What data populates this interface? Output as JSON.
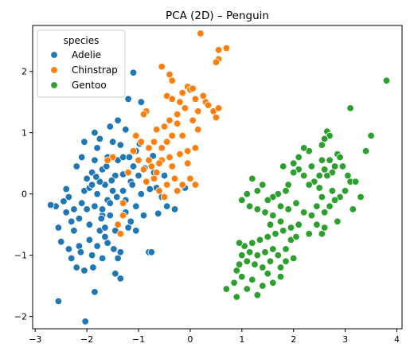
{
  "chart_data": {
    "type": "scatter",
    "title": "PCA (2D) – Penguin",
    "xlabel": "",
    "ylabel": "",
    "xlim": [
      -3.05,
      4.1
    ],
    "ylim": [
      -2.2,
      2.75
    ],
    "xticks": [
      -3,
      -2,
      -1,
      0,
      1,
      2,
      3,
      4
    ],
    "yticks": [
      -2,
      -1,
      0,
      1,
      2
    ],
    "grid": false,
    "legend": {
      "title": "species",
      "position": "top-left"
    },
    "series": [
      {
        "name": "Adelie",
        "color": "#1f77b4",
        "points": [
          [
            -2.55,
            -1.75
          ],
          [
            -2.03,
            -2.08
          ],
          [
            -1.85,
            -1.6
          ],
          [
            -1.45,
            -1.3
          ],
          [
            -1.35,
            -1.38
          ],
          [
            -2.6,
            -0.2
          ],
          [
            -2.7,
            -0.18
          ],
          [
            -2.55,
            -0.55
          ],
          [
            -2.4,
            -0.3
          ],
          [
            -2.35,
            -0.05
          ],
          [
            -2.4,
            0.08
          ],
          [
            -2.5,
            -0.78
          ],
          [
            -2.3,
            -1.05
          ],
          [
            -2.2,
            -1.2
          ],
          [
            -2.15,
            -0.85
          ],
          [
            -2.25,
            -0.6
          ],
          [
            -2.15,
            -0.4
          ],
          [
            -2.1,
            -0.15
          ],
          [
            -2.05,
            0.05
          ],
          [
            -2.0,
            0.25
          ],
          [
            -1.9,
            0.35
          ],
          [
            -1.85,
            0.55
          ],
          [
            -1.8,
            0.75
          ],
          [
            -1.75,
            0.9
          ],
          [
            -1.7,
            0.4
          ],
          [
            -1.65,
            0.15
          ],
          [
            -1.6,
            -0.1
          ],
          [
            -1.7,
            -0.35
          ],
          [
            -1.75,
            -0.6
          ],
          [
            -1.8,
            -0.85
          ],
          [
            -1.9,
            -1.0
          ],
          [
            -1.95,
            -0.5
          ],
          [
            -2.0,
            -0.25
          ],
          [
            -1.95,
            0.1
          ],
          [
            -1.85,
            -0.2
          ],
          [
            -1.8,
            0.0
          ],
          [
            -1.75,
            0.2
          ],
          [
            -1.7,
            -0.25
          ],
          [
            -1.65,
            -0.55
          ],
          [
            -1.6,
            -0.8
          ],
          [
            -1.55,
            -0.35
          ],
          [
            -1.5,
            0.05
          ],
          [
            -1.45,
            0.3
          ],
          [
            -1.4,
            0.55
          ],
          [
            -1.35,
            0.8
          ],
          [
            -1.3,
            0.05
          ],
          [
            -1.25,
            -0.3
          ],
          [
            -1.2,
            -0.55
          ],
          [
            -1.15,
            0.2
          ],
          [
            -1.1,
            0.45
          ],
          [
            -1.05,
            0.7
          ],
          [
            -1.0,
            0.3
          ],
          [
            -0.95,
            0.0
          ],
          [
            -1.05,
            -0.2
          ],
          [
            -1.15,
            -0.45
          ],
          [
            -0.8,
            -0.95
          ],
          [
            -0.75,
            -0.95
          ],
          [
            -0.7,
            0.35
          ],
          [
            -0.65,
            0.1
          ],
          [
            -0.6,
            0.5
          ],
          [
            -0.55,
            -0.05
          ],
          [
            -0.45,
            -0.2
          ],
          [
            -0.3,
            -0.25
          ],
          [
            -0.1,
            0.1
          ],
          [
            -0.5,
            0.3
          ],
          [
            -1.1,
            1.98
          ],
          [
            -0.95,
            1.5
          ],
          [
            -1.2,
            1.55
          ],
          [
            -1.4,
            1.2
          ],
          [
            -1.25,
            1.05
          ],
          [
            -1.3,
            0.6
          ],
          [
            -1.85,
            1.0
          ],
          [
            -2.05,
            0.85
          ],
          [
            -2.1,
            0.6
          ],
          [
            -2.2,
            0.45
          ],
          [
            -1.6,
            0.6
          ],
          [
            -1.5,
            0.85
          ],
          [
            -1.55,
            1.1
          ],
          [
            -1.35,
            -0.95
          ],
          [
            -1.25,
            -0.1
          ],
          [
            -2.25,
            -0.25
          ],
          [
            -1.95,
            -0.75
          ],
          [
            -2.05,
            -1.25
          ],
          [
            -1.7,
            -1.05
          ],
          [
            -1.45,
            -0.6
          ],
          [
            -2.3,
            -0.45
          ],
          [
            -2.45,
            -0.12
          ],
          [
            -1.62,
            0.45
          ],
          [
            -1.55,
            -0.15
          ],
          [
            -1.9,
            0.15
          ],
          [
            -1.72,
            -0.4
          ],
          [
            -1.82,
            0.28
          ],
          [
            -1.52,
            0.22
          ],
          [
            -1.42,
            -0.05
          ],
          [
            -1.3,
            0.32
          ],
          [
            -1.12,
            0.15
          ],
          [
            -0.88,
            0.42
          ],
          [
            -0.72,
            0.62
          ],
          [
            -0.62,
            -0.32
          ],
          [
            -0.9,
            -0.35
          ],
          [
            -1.05,
            -0.6
          ],
          [
            -1.18,
            0.6
          ],
          [
            -2.12,
            -0.95
          ],
          [
            -1.88,
            -1.2
          ],
          [
            -2.35,
            -0.9
          ],
          [
            -1.65,
            -0.7
          ],
          [
            -1.48,
            -0.9
          ],
          [
            -1.4,
            -1.05
          ],
          [
            -0.78,
            0.08
          ],
          [
            -0.98,
            0.82
          ]
        ]
      },
      {
        "name": "Chinstrap",
        "color": "#ff7f0e",
        "points": [
          [
            0.2,
            2.62
          ],
          [
            0.55,
            2.35
          ],
          [
            0.7,
            2.38
          ],
          [
            0.55,
            2.2
          ],
          [
            0.5,
            2.15
          ],
          [
            -0.55,
            2.08
          ],
          [
            -0.4,
            1.95
          ],
          [
            -0.35,
            1.85
          ],
          [
            -0.05,
            1.75
          ],
          [
            0.0,
            1.7
          ],
          [
            0.05,
            1.72
          ],
          [
            -0.15,
            1.65
          ],
          [
            -0.45,
            1.6
          ],
          [
            -0.35,
            1.55
          ],
          [
            -0.2,
            1.5
          ],
          [
            0.1,
            1.55
          ],
          [
            0.3,
            1.5
          ],
          [
            0.25,
            1.6
          ],
          [
            0.35,
            1.45
          ],
          [
            0.45,
            1.35
          ],
          [
            0.5,
            1.25
          ],
          [
            0.55,
            1.4
          ],
          [
            0.15,
            1.35
          ],
          [
            -0.1,
            1.4
          ],
          [
            -0.25,
            1.3
          ],
          [
            -0.4,
            1.2
          ],
          [
            -0.5,
            1.1
          ],
          [
            -0.65,
            1.05
          ],
          [
            -0.85,
            1.35
          ],
          [
            -0.9,
            1.3
          ],
          [
            -0.7,
            0.85
          ],
          [
            -0.55,
            0.75
          ],
          [
            -0.45,
            0.85
          ],
          [
            -0.25,
            1.15
          ],
          [
            -0.35,
            0.95
          ],
          [
            -0.8,
            0.55
          ],
          [
            -0.75,
            0.45
          ],
          [
            -0.9,
            0.4
          ],
          [
            -1.0,
            0.55
          ],
          [
            -1.2,
            0.35
          ],
          [
            -0.85,
            0.2
          ],
          [
            -0.7,
            0.25
          ],
          [
            -0.6,
            0.05
          ],
          [
            -0.5,
            -0.05
          ],
          [
            -0.45,
            0.15
          ],
          [
            -0.35,
            0.45
          ],
          [
            -0.2,
            0.65
          ],
          [
            -0.05,
            0.5
          ],
          [
            -0.05,
            0.7
          ],
          [
            0.1,
            0.75
          ],
          [
            -0.55,
            0.55
          ],
          [
            -0.65,
            0.35
          ],
          [
            -1.3,
            -0.15
          ],
          [
            -1.3,
            -0.35
          ],
          [
            -1.4,
            -0.5
          ],
          [
            -1.35,
            -0.65
          ],
          [
            -1.5,
            0.6
          ],
          [
            -1.6,
            0.55
          ],
          [
            -1.05,
            0.95
          ],
          [
            -1.1,
            0.7
          ],
          [
            -0.3,
            0.25
          ],
          [
            -0.25,
            0.05
          ],
          [
            -0.15,
            0.15
          ],
          [
            0.0,
            0.25
          ],
          [
            0.1,
            0.15
          ],
          [
            -0.6,
            0.5
          ],
          [
            -0.4,
            0.6
          ],
          [
            -0.8,
            0.75
          ],
          [
            -0.95,
            0.85
          ],
          [
            0.05,
            1.2
          ],
          [
            -0.15,
            0.95
          ],
          [
            0.15,
            1.05
          ]
        ]
      },
      {
        "name": "Gentoo",
        "color": "#2ca02c",
        "points": [
          [
            3.8,
            1.85
          ],
          [
            3.1,
            1.4
          ],
          [
            3.5,
            0.95
          ],
          [
            3.4,
            0.7
          ],
          [
            2.65,
            1.02
          ],
          [
            2.7,
            0.95
          ],
          [
            2.6,
            0.9
          ],
          [
            2.55,
            0.8
          ],
          [
            2.85,
            0.65
          ],
          [
            2.9,
            0.6
          ],
          [
            2.3,
            0.7
          ],
          [
            2.2,
            0.75
          ],
          [
            2.1,
            0.6
          ],
          [
            2.7,
            0.55
          ],
          [
            2.8,
            0.45
          ],
          [
            2.75,
            0.35
          ],
          [
            2.65,
            0.3
          ],
          [
            2.6,
            0.4
          ],
          [
            2.5,
            0.3
          ],
          [
            2.95,
            0.45
          ],
          [
            3.05,
            0.3
          ],
          [
            3.1,
            0.2
          ],
          [
            3.0,
            0.05
          ],
          [
            2.9,
            -0.05
          ],
          [
            2.8,
            -0.1
          ],
          [
            2.7,
            -0.2
          ],
          [
            2.6,
            -0.3
          ],
          [
            2.55,
            -0.05
          ],
          [
            2.5,
            0.1
          ],
          [
            2.4,
            0.2
          ],
          [
            2.3,
            0.15
          ],
          [
            2.2,
            0.3
          ],
          [
            2.1,
            0.4
          ],
          [
            2.0,
            0.35
          ],
          [
            1.9,
            0.15
          ],
          [
            1.85,
            0.05
          ],
          [
            1.7,
            0.0
          ],
          [
            1.6,
            -0.05
          ],
          [
            1.5,
            -0.1
          ],
          [
            1.4,
            0.15
          ],
          [
            1.3,
            0.05
          ],
          [
            1.2,
            0.25
          ],
          [
            1.1,
            0.0
          ],
          [
            1.0,
            -0.1
          ],
          [
            1.15,
            -0.2
          ],
          [
            1.3,
            -0.25
          ],
          [
            1.45,
            -0.3
          ],
          [
            1.6,
            -0.35
          ],
          [
            1.75,
            -0.2
          ],
          [
            1.9,
            -0.25
          ],
          [
            2.05,
            -0.15
          ],
          [
            2.2,
            -0.3
          ],
          [
            2.35,
            -0.35
          ],
          [
            2.45,
            -0.5
          ],
          [
            2.55,
            -0.65
          ],
          [
            2.3,
            -0.65
          ],
          [
            2.1,
            -0.5
          ],
          [
            1.95,
            -0.55
          ],
          [
            1.8,
            -0.6
          ],
          [
            1.65,
            -0.65
          ],
          [
            1.5,
            -0.7
          ],
          [
            1.35,
            -0.75
          ],
          [
            1.2,
            -0.8
          ],
          [
            1.05,
            -0.85
          ],
          [
            0.95,
            -0.8
          ],
          [
            1.0,
            -1.0
          ],
          [
            1.1,
            -1.1
          ],
          [
            1.25,
            -1.15
          ],
          [
            1.4,
            -1.2
          ],
          [
            1.55,
            -1.1
          ],
          [
            1.7,
            -1.0
          ],
          [
            1.85,
            -0.9
          ],
          [
            1.95,
            -0.75
          ],
          [
            2.05,
            -0.7
          ],
          [
            1.6,
            -0.9
          ],
          [
            1.45,
            -0.95
          ],
          [
            1.3,
            -1.0
          ],
          [
            1.15,
            -0.95
          ],
          [
            0.95,
            -1.15
          ],
          [
            0.9,
            -1.25
          ],
          [
            0.85,
            -1.45
          ],
          [
            1.0,
            -1.35
          ],
          [
            1.2,
            -1.4
          ],
          [
            1.4,
            -1.5
          ],
          [
            1.6,
            -1.45
          ],
          [
            1.75,
            -1.35
          ],
          [
            1.1,
            -1.55
          ],
          [
            1.3,
            -1.65
          ],
          [
            0.7,
            -1.55
          ],
          [
            0.9,
            -1.68
          ],
          [
            1.5,
            -1.3
          ],
          [
            1.75,
            -1.2
          ],
          [
            1.85,
            -1.1
          ],
          [
            2.0,
            -1.05
          ],
          [
            1.55,
            -0.5
          ],
          [
            1.75,
            -0.45
          ],
          [
            2.6,
            -0.55
          ],
          [
            2.45,
            -0.2
          ],
          [
            3.2,
            0.2
          ],
          [
            3.3,
            -0.05
          ],
          [
            2.0,
            0.5
          ],
          [
            1.8,
            0.45
          ],
          [
            2.35,
            0.45
          ],
          [
            2.55,
            0.55
          ],
          [
            2.75,
            0.05
          ],
          [
            3.15,
            -0.25
          ],
          [
            2.85,
            -0.45
          ]
        ]
      }
    ]
  }
}
